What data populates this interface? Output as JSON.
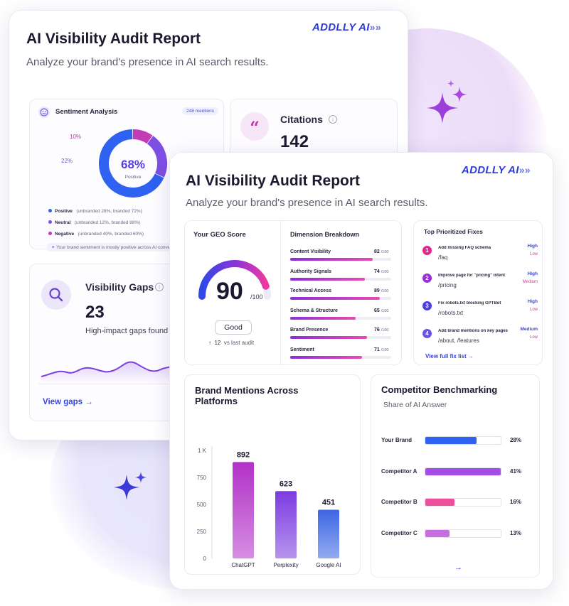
{
  "back_card": {
    "title": "AI Visibility Audit Report",
    "subtitle": "Analyze your brand's presence in AI search results.",
    "logo_text": "ADDLLY AI",
    "sentiment": {
      "title": "Sentiment Analysis",
      "badge": "248 mentions",
      "center_value": "68%",
      "center_label": "Positive",
      "label_a": "10%",
      "label_b": "22%",
      "legend": [
        {
          "name": "Positive",
          "detail": "(unbranded 28%, branded 72%)",
          "color": "#2f62f0"
        },
        {
          "name": "Neutral",
          "detail": "(unbranded 12%, branded 88%)",
          "color": "#7d4fe3"
        },
        {
          "name": "Negative",
          "detail": "(unbranded 40%, branded 60%)",
          "color": "#c43bb7"
        }
      ],
      "note": "Your brand sentiment is mostly positive across AI conversations.",
      "donut": [
        0.68,
        0.22,
        0.1
      ]
    },
    "citations": {
      "title": "Citations",
      "value": "142"
    },
    "gaps": {
      "title": "Visibility Gaps",
      "value": "23",
      "caption": "High-impact gaps found",
      "link": "View gaps"
    }
  },
  "front_card": {
    "title": "AI Visibility Audit Report",
    "subtitle": "Analyze your brand's presence in AI search results.",
    "logo_text": "ADDLLY AI",
    "geo": {
      "title": "Your GEO Score",
      "score": "90",
      "max": "/100",
      "score_fraction": 0.9,
      "rating": "Good",
      "delta": "12",
      "delta_caption": "vs last audit"
    },
    "dimensions": {
      "title": "Dimension Breakdown",
      "max": "/100",
      "items": [
        {
          "label": "Content Visibility",
          "value": "82",
          "fill": 0.82
        },
        {
          "label": "Authority Signals",
          "value": "74",
          "fill": 0.74
        },
        {
          "label": "Technical Access",
          "value": "89",
          "fill": 0.89
        },
        {
          "label": "Schema & Structure",
          "value": "65",
          "fill": 0.65
        },
        {
          "label": "Brand Presence",
          "value": "76",
          "fill": 0.76
        },
        {
          "label": "Sentiment",
          "value": "71",
          "fill": 0.71
        }
      ]
    },
    "fixes": {
      "title": "Top Prioritized Fixes",
      "items": [
        {
          "num": "1",
          "title": "Add missing FAQ schema",
          "path": "/faq",
          "impact": "High",
          "effort": "Low",
          "color": "#e0288f"
        },
        {
          "num": "2",
          "title": "Improve page for \"pricing\" intent",
          "path": "/pricing",
          "impact": "High",
          "effort": "Medium",
          "color": "#9b2fd6"
        },
        {
          "num": "3",
          "title": "Fix robots.txt blocking GPTBot",
          "path": "/robots.txt",
          "impact": "High",
          "effort": "Low",
          "color": "#4b3fe0"
        },
        {
          "num": "4",
          "title": "Add brand mentions on key pages",
          "path": "/about, /features",
          "impact": "Medium",
          "effort": "Low",
          "color": "#6a52e8"
        }
      ],
      "link": "View full fix list"
    },
    "mentions_chart": {
      "title_line1": "Brand Mentions Across",
      "title_line2": "Platforms"
    },
    "competitors": {
      "title": "Competitor Benchmarking",
      "subtitle": "Share of AI Answer",
      "items": [
        {
          "name": "Your Brand",
          "value": "28%",
          "share": 0.28,
          "color": "#2f62f0"
        },
        {
          "name": "Competitor A",
          "value": "41%",
          "share": 0.41,
          "color": "#a24de6"
        },
        {
          "name": "Competitor B",
          "value": "16%",
          "share": 0.16,
          "color": "#ec4f9d"
        },
        {
          "name": "Competitor C",
          "value": "13%",
          "share": 0.13,
          "color": "#c86fe0"
        }
      ]
    }
  },
  "colors": {
    "accent": "#2d3bd6",
    "purple": "#8f3ad8",
    "pink": "#e84ab4"
  },
  "chart_data": {
    "type": "bar",
    "title": "Brand Mentions Across Platforms",
    "categories": [
      "ChatGPT",
      "Perplexity",
      "Google AI"
    ],
    "values": [
      892,
      623,
      451
    ],
    "ytick_labels": [
      "0",
      "250",
      "500",
      "750",
      "1 K"
    ],
    "yticks": [
      0,
      250,
      500,
      750,
      1000
    ],
    "ylim": [
      0,
      1000
    ],
    "grid": false,
    "colors": [
      "#b231c8",
      "#7c3ce0",
      "#3d66e4"
    ]
  }
}
